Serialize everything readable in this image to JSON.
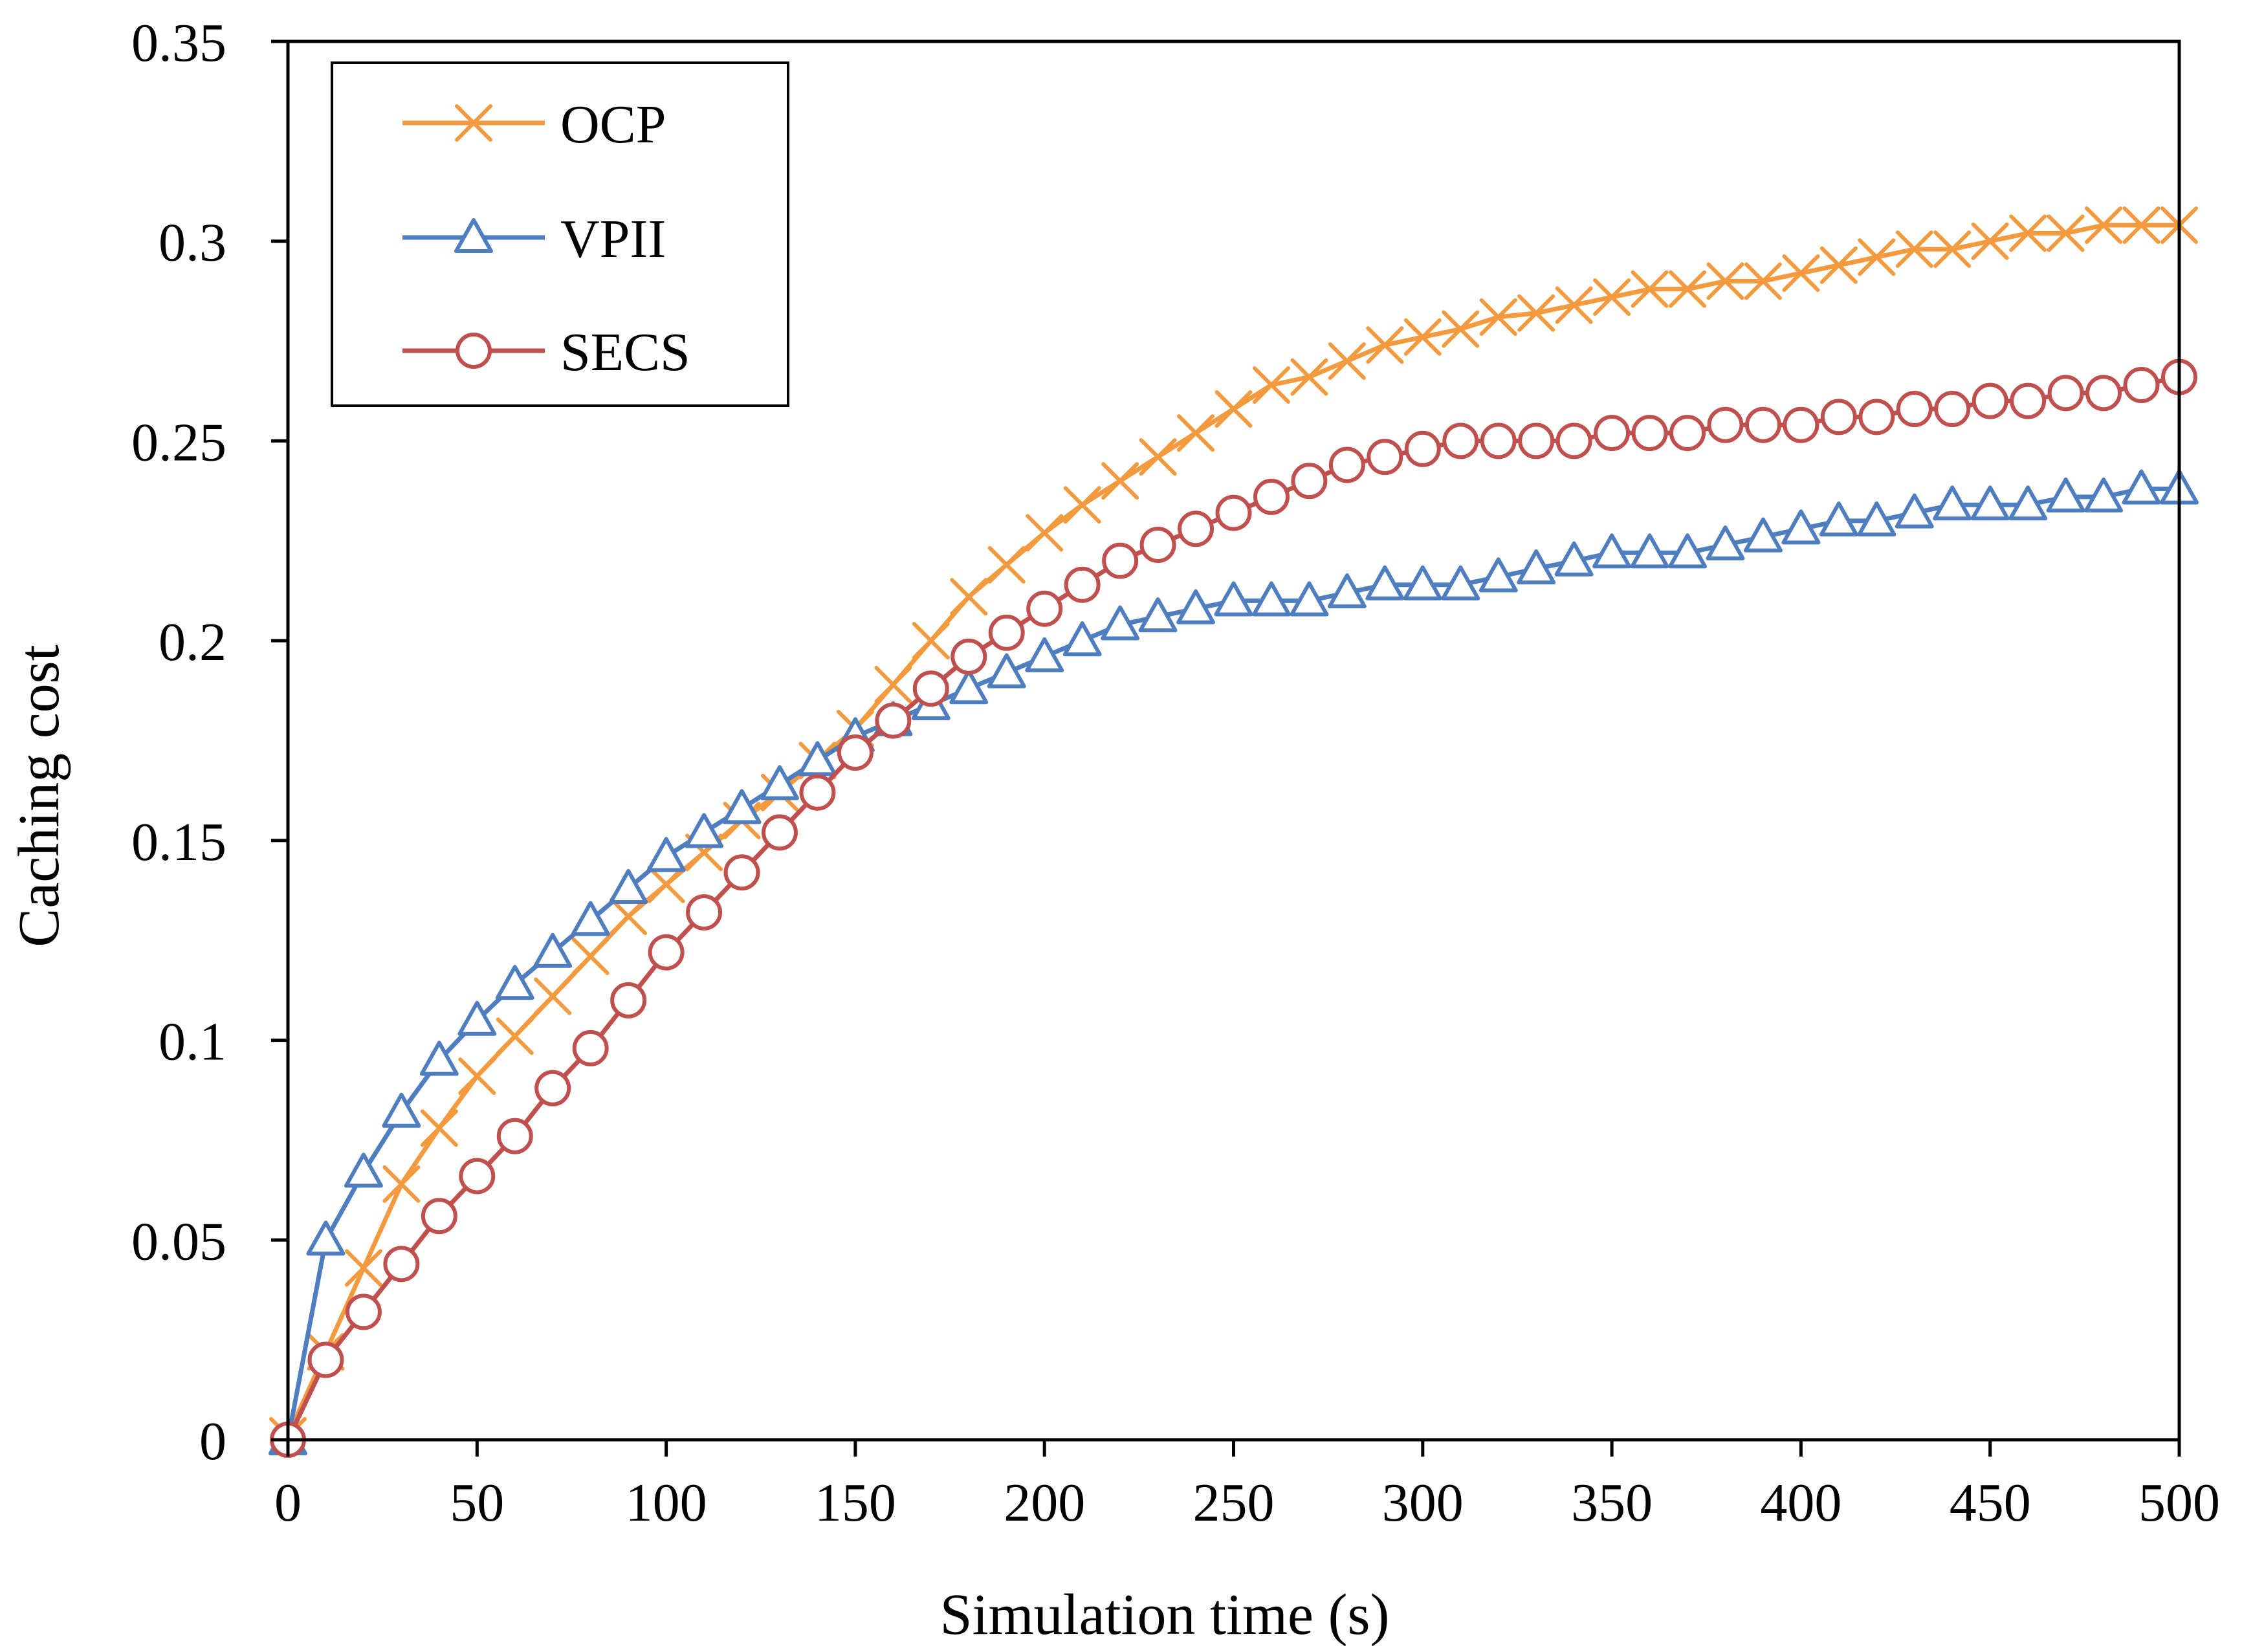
{
  "chart_data": {
    "type": "line",
    "title": "",
    "xlabel": "Simulation time (s)",
    "ylabel": "Caching cost",
    "xlim": [
      0,
      500
    ],
    "ylim": [
      0,
      0.35
    ],
    "xticks": [
      0,
      50,
      100,
      150,
      200,
      250,
      300,
      350,
      400,
      450,
      500
    ],
    "yticks": [
      0,
      0.05,
      0.1,
      0.15,
      0.2,
      0.25,
      0.3,
      0.35
    ],
    "xtick_labels": [
      "0",
      "50",
      "100",
      "150",
      "200",
      "250",
      "300",
      "350",
      "400",
      "450",
      "500"
    ],
    "ytick_labels": [
      "0",
      "0.05",
      "0.1",
      "0.15",
      "0.2",
      "0.25",
      "0.3",
      "0.35"
    ],
    "grid": false,
    "legend_position": "top-left",
    "x": [
      0,
      10,
      20,
      30,
      40,
      50,
      60,
      70,
      80,
      90,
      100,
      110,
      120,
      130,
      140,
      150,
      160,
      170,
      180,
      190,
      200,
      210,
      220,
      230,
      240,
      250,
      260,
      270,
      280,
      290,
      300,
      310,
      320,
      330,
      340,
      350,
      360,
      370,
      380,
      390,
      400,
      410,
      420,
      430,
      440,
      450,
      460,
      470,
      480,
      490,
      500
    ],
    "series": [
      {
        "name": "OCP",
        "color": "#F39A3E",
        "marker": "x",
        "values": [
          0.001,
          0.022,
          0.043,
          0.064,
          0.078,
          0.091,
          0.101,
          0.111,
          0.121,
          0.131,
          0.139,
          0.147,
          0.155,
          0.162,
          0.17,
          0.178,
          0.189,
          0.2,
          0.211,
          0.219,
          0.227,
          0.234,
          0.24,
          0.246,
          0.252,
          0.258,
          0.264,
          0.266,
          0.27,
          0.274,
          0.276,
          0.278,
          0.281,
          0.282,
          0.284,
          0.286,
          0.288,
          0.288,
          0.29,
          0.29,
          0.292,
          0.294,
          0.296,
          0.298,
          0.298,
          0.3,
          0.302,
          0.302,
          0.304,
          0.304,
          0.304
        ]
      },
      {
        "name": "VPII",
        "color": "#4F7EC0",
        "marker": "triangle",
        "values": [
          0.0,
          0.05,
          0.067,
          0.082,
          0.095,
          0.105,
          0.114,
          0.122,
          0.13,
          0.138,
          0.146,
          0.152,
          0.158,
          0.164,
          0.17,
          0.176,
          0.18,
          0.184,
          0.188,
          0.192,
          0.196,
          0.2,
          0.204,
          0.206,
          0.208,
          0.21,
          0.21,
          0.21,
          0.212,
          0.214,
          0.214,
          0.214,
          0.216,
          0.218,
          0.22,
          0.222,
          0.222,
          0.222,
          0.224,
          0.226,
          0.228,
          0.23,
          0.23,
          0.232,
          0.234,
          0.234,
          0.234,
          0.236,
          0.236,
          0.238,
          0.238
        ]
      },
      {
        "name": "SECS",
        "color": "#C0504D",
        "marker": "circle",
        "values": [
          0.0,
          0.02,
          0.032,
          0.044,
          0.056,
          0.066,
          0.076,
          0.088,
          0.098,
          0.11,
          0.122,
          0.132,
          0.142,
          0.152,
          0.162,
          0.172,
          0.18,
          0.188,
          0.196,
          0.202,
          0.208,
          0.214,
          0.22,
          0.224,
          0.228,
          0.232,
          0.236,
          0.24,
          0.244,
          0.246,
          0.248,
          0.25,
          0.25,
          0.25,
          0.25,
          0.252,
          0.252,
          0.252,
          0.254,
          0.254,
          0.254,
          0.256,
          0.256,
          0.258,
          0.258,
          0.26,
          0.26,
          0.262,
          0.262,
          0.264,
          0.266
        ]
      }
    ]
  }
}
